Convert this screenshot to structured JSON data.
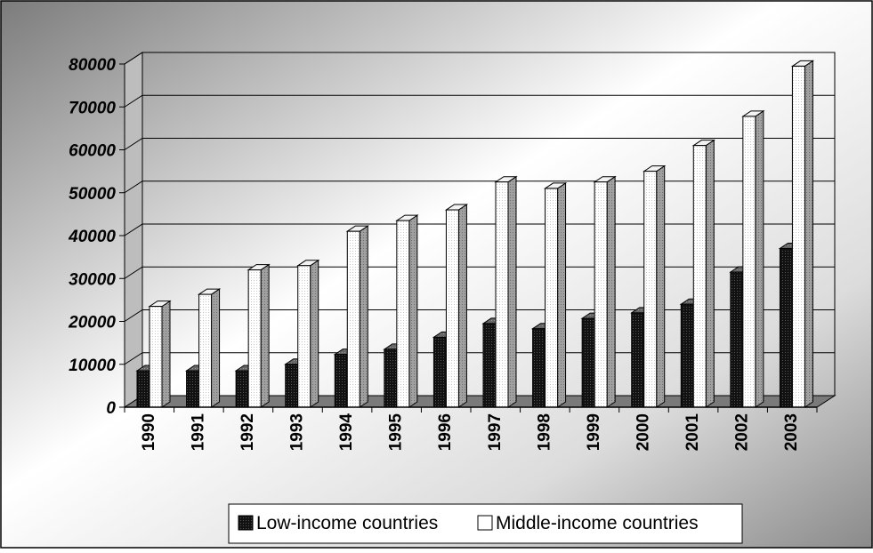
{
  "chart_data": {
    "type": "bar",
    "title": "",
    "xlabel": "",
    "ylabel": "",
    "ylim": [
      0,
      80000
    ],
    "yticks": [
      0,
      10000,
      20000,
      30000,
      40000,
      50000,
      60000,
      70000,
      80000
    ],
    "grid": true,
    "legend_position": "bottom",
    "style": "3d-clustered-column",
    "categories": [
      "1990",
      "1991",
      "1992",
      "1993",
      "1994",
      "1995",
      "1996",
      "1997",
      "1998",
      "1999",
      "2000",
      "2001",
      "2002",
      "2003"
    ],
    "series": [
      {
        "name": "Low-income countries",
        "color": "#1a1a1a",
        "values": [
          8500,
          8500,
          8500,
          10000,
          12300,
          13500,
          16300,
          19500,
          18300,
          20700,
          22000,
          24000,
          31500,
          37000
        ]
      },
      {
        "name": "Middle-income countries",
        "color": "#ffffff",
        "values": [
          23500,
          26300,
          32000,
          33000,
          41000,
          43500,
          46000,
          52500,
          51000,
          52500,
          55000,
          61000,
          67800,
          79500
        ]
      }
    ]
  }
}
